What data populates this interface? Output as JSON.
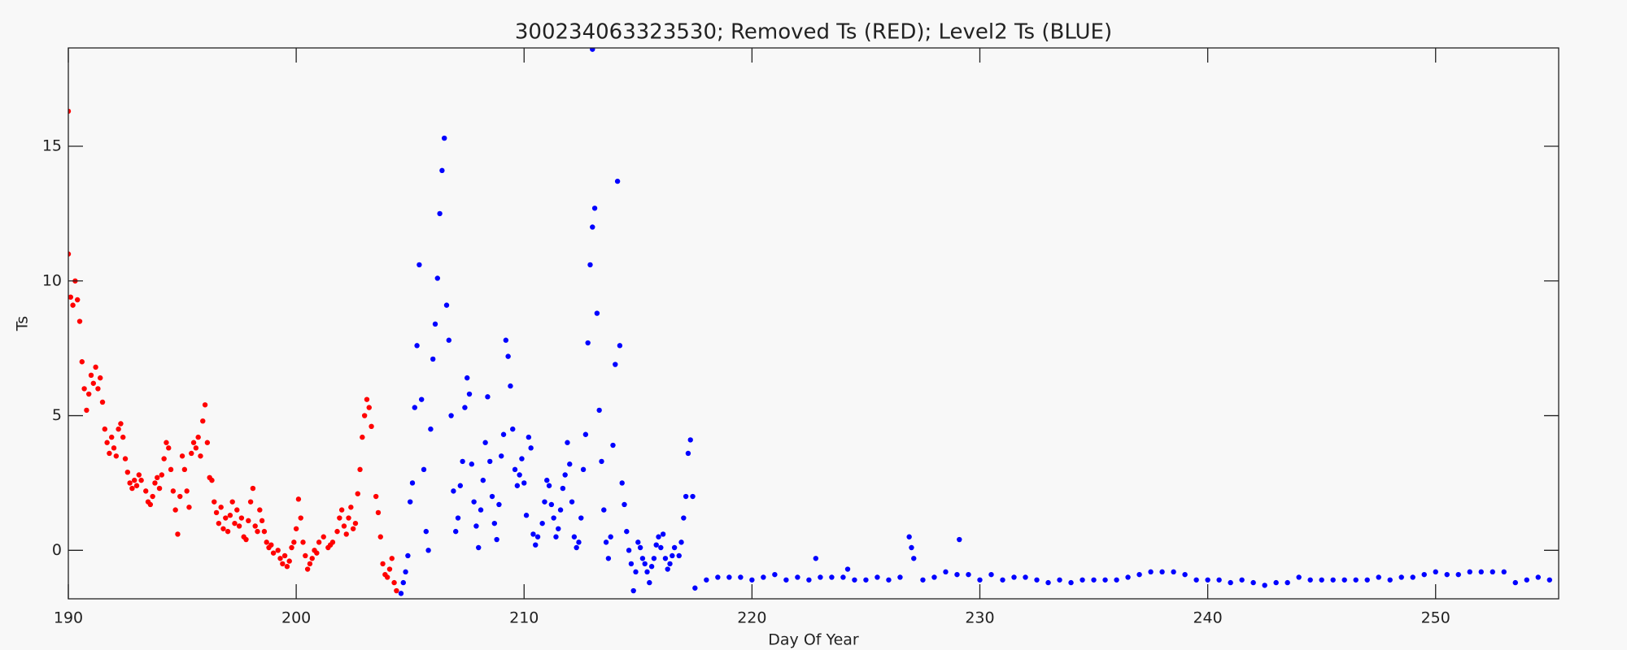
{
  "chart_data": {
    "type": "scatter",
    "title": "300234063323530; Removed Ts (RED); Level2 Ts (BLUE)",
    "x_label": "Day Of Year",
    "y_label": "Ts",
    "xlim": [
      190,
      255.4
    ],
    "ylim": [
      -1.8,
      18.65
    ],
    "xticks": [
      190,
      200,
      210,
      220,
      230,
      240,
      250
    ],
    "yticks": [
      0,
      5,
      10,
      15
    ],
    "series": [
      {
        "color": "#ff0000",
        "x": [
          190.0,
          190.0,
          190.1,
          190.2,
          190.3,
          190.4,
          190.5,
          190.6,
          190.7,
          190.8,
          190.9,
          191.0,
          191.1,
          191.2,
          191.3,
          191.4,
          191.5,
          191.6,
          191.7,
          191.8,
          191.9,
          192.0,
          192.1,
          192.2,
          192.3,
          192.4,
          192.5,
          192.6,
          192.7,
          192.8,
          192.9,
          193.0,
          193.1,
          193.2,
          193.4,
          193.5,
          193.6,
          193.7,
          193.8,
          193.9,
          194.0,
          194.1,
          194.2,
          194.3,
          194.4,
          194.5,
          194.6,
          194.7,
          194.8,
          194.9,
          195.0,
          195.1,
          195.2,
          195.3,
          195.4,
          195.5,
          195.6,
          195.7,
          195.8,
          195.9,
          196.0,
          196.1,
          196.2,
          196.3,
          196.4,
          196.5,
          196.6,
          196.7,
          196.8,
          196.9,
          197.0,
          197.1,
          197.2,
          197.3,
          197.4,
          197.5,
          197.6,
          197.7,
          197.8,
          197.9,
          198.0,
          198.1,
          198.2,
          198.3,
          198.4,
          198.5,
          198.6,
          198.7,
          198.8,
          198.9,
          199.0,
          199.2,
          199.3,
          199.4,
          199.5,
          199.6,
          199.7,
          199.8,
          199.9,
          200.0,
          200.1,
          200.2,
          200.3,
          200.4,
          200.5,
          200.6,
          200.7,
          200.8,
          200.9,
          201.0,
          201.2,
          201.4,
          201.5,
          201.6,
          201.8,
          201.9,
          202.0,
          202.1,
          202.2,
          202.3,
          202.4,
          202.5,
          202.6,
          202.7,
          202.8,
          202.9,
          203.0,
          203.1,
          203.2,
          203.3,
          203.5,
          203.6,
          203.7,
          203.8,
          203.9,
          204.0,
          204.1,
          204.2,
          204.3,
          204.4
        ],
        "values": [
          16.3,
          11.0,
          9.4,
          9.1,
          10.0,
          9.3,
          8.5,
          7.0,
          6.0,
          5.2,
          5.8,
          6.5,
          6.2,
          6.8,
          6.0,
          6.4,
          5.5,
          4.5,
          4.0,
          3.6,
          4.2,
          3.8,
          3.5,
          4.5,
          4.7,
          4.2,
          3.4,
          2.9,
          2.5,
          2.3,
          2.6,
          2.4,
          2.8,
          2.6,
          2.2,
          1.8,
          1.7,
          2.0,
          2.5,
          2.7,
          2.3,
          2.8,
          3.4,
          4.0,
          3.8,
          3.0,
          2.2,
          1.5,
          0.6,
          2.0,
          3.5,
          3.0,
          2.2,
          1.6,
          3.6,
          4.0,
          3.8,
          4.2,
          3.5,
          4.8,
          5.4,
          4.0,
          2.7,
          2.6,
          1.8,
          1.4,
          1.0,
          1.6,
          0.8,
          1.2,
          0.7,
          1.3,
          1.8,
          1.0,
          1.5,
          0.9,
          1.2,
          0.5,
          0.4,
          1.1,
          1.8,
          2.3,
          0.9,
          0.7,
          1.5,
          1.1,
          0.7,
          0.3,
          0.1,
          0.2,
          -0.1,
          0.0,
          -0.3,
          -0.5,
          -0.2,
          -0.6,
          -0.4,
          0.1,
          0.3,
          0.8,
          1.9,
          1.2,
          0.3,
          -0.2,
          -0.7,
          -0.5,
          -0.3,
          0.0,
          -0.1,
          0.3,
          0.5,
          0.1,
          0.2,
          0.3,
          0.7,
          1.2,
          1.5,
          0.9,
          0.6,
          1.2,
          1.6,
          0.8,
          1.0,
          2.1,
          3.0,
          4.2,
          5.0,
          5.6,
          5.3,
          4.6,
          2.0,
          1.4,
          0.5,
          -0.5,
          -0.9,
          -1.0,
          -0.7,
          -0.3,
          -1.2,
          -1.5
        ]
      },
      {
        "color": "#0000ff",
        "x": [
          204.6,
          204.7,
          204.8,
          204.9,
          205.0,
          205.1,
          205.2,
          205.3,
          205.4,
          205.5,
          205.6,
          205.7,
          205.8,
          205.9,
          206.0,
          206.1,
          206.2,
          206.3,
          206.4,
          206.5,
          206.6,
          206.7,
          206.8,
          206.9,
          207.0,
          207.1,
          207.2,
          207.3,
          207.4,
          207.5,
          207.6,
          207.7,
          207.8,
          207.9,
          208.0,
          208.1,
          208.2,
          208.3,
          208.4,
          208.5,
          208.6,
          208.7,
          208.8,
          208.9,
          209.0,
          209.1,
          209.2,
          209.3,
          209.4,
          209.5,
          209.6,
          209.7,
          209.8,
          209.9,
          210.0,
          210.1,
          210.2,
          210.3,
          210.4,
          210.5,
          210.6,
          210.8,
          210.9,
          211.0,
          211.1,
          211.2,
          211.3,
          211.4,
          211.5,
          211.6,
          211.7,
          211.8,
          211.9,
          212.0,
          212.1,
          212.2,
          212.3,
          212.4,
          212.5,
          212.6,
          212.7,
          212.8,
          212.9,
          213.0,
          213.1,
          213.2,
          213.3,
          213.4,
          213.5,
          213.6,
          213.7,
          213.8,
          213.9,
          214.0,
          214.1,
          214.2,
          214.3,
          214.4,
          214.5,
          214.6,
          214.7,
          214.8,
          214.9,
          215.0,
          215.1,
          215.2,
          215.3,
          215.4,
          215.5,
          215.6,
          215.7,
          215.8,
          215.9,
          216.0,
          216.1,
          216.2,
          216.3,
          216.4,
          216.5,
          216.6,
          216.8,
          216.9,
          217.0,
          217.1,
          217.2,
          217.3,
          217.4,
          217.5,
          213.0,
          218,
          218.5,
          219,
          219.5,
          220,
          220.5,
          221,
          221.5,
          222,
          222.5,
          222.8,
          223,
          223.5,
          224,
          224.2,
          224.5,
          225,
          225.5,
          226,
          226.5,
          226.9,
          227.0,
          227.1,
          227.5,
          228,
          228.5,
          229.0,
          229.1,
          229.5,
          230,
          230.5,
          231,
          231.5,
          232,
          232.5,
          233,
          233.5,
          234,
          234.5,
          235,
          235.5,
          236,
          236.5,
          237,
          237.5,
          238,
          238.5,
          239,
          239.5,
          240,
          240.5,
          241,
          241.5,
          242,
          242.5,
          243,
          243.5,
          244,
          244.5,
          245,
          245.5,
          246,
          246.5,
          247,
          247.5,
          248,
          248.5,
          249,
          249.5,
          250,
          250.5,
          251,
          251.5,
          252,
          252.5,
          253,
          253.5,
          254,
          254.5,
          255
        ],
        "values": [
          -1.6,
          -1.2,
          -0.8,
          -0.2,
          1.8,
          2.5,
          5.3,
          7.6,
          10.6,
          5.6,
          3.0,
          0.7,
          0.0,
          4.5,
          7.1,
          8.4,
          10.1,
          12.5,
          14.1,
          15.3,
          9.1,
          7.8,
          5.0,
          2.2,
          0.7,
          1.2,
          2.4,
          3.3,
          5.3,
          6.4,
          5.8,
          3.2,
          1.8,
          0.9,
          0.1,
          1.5,
          2.6,
          4.0,
          5.7,
          3.3,
          2.0,
          1.0,
          0.4,
          1.7,
          3.5,
          4.3,
          7.8,
          7.2,
          6.1,
          4.5,
          3.0,
          2.4,
          2.8,
          3.4,
          2.5,
          1.3,
          4.2,
          3.8,
          0.6,
          0.2,
          0.5,
          1.0,
          1.8,
          2.6,
          2.4,
          1.7,
          1.2,
          0.5,
          0.8,
          1.5,
          2.3,
          2.8,
          4.0,
          3.2,
          1.8,
          0.5,
          0.1,
          0.3,
          1.2,
          3.0,
          4.3,
          7.7,
          10.6,
          12.0,
          12.7,
          8.8,
          5.2,
          3.3,
          1.5,
          0.3,
          -0.3,
          0.5,
          3.9,
          6.9,
          13.7,
          7.6,
          2.5,
          1.7,
          0.7,
          0.0,
          -0.5,
          -1.5,
          -0.8,
          0.3,
          0.1,
          -0.3,
          -0.5,
          -0.8,
          -1.2,
          -0.6,
          -0.3,
          0.2,
          0.5,
          0.1,
          0.6,
          -0.3,
          -0.7,
          -0.5,
          -0.2,
          0.1,
          -0.2,
          0.3,
          1.2,
          2.0,
          3.6,
          4.1,
          2.0,
          -1.4,
          18.6,
          -1.1,
          -1.0,
          -1.0,
          -1.0,
          -1.1,
          -1.0,
          -0.9,
          -1.1,
          -1.0,
          -1.1,
          -0.3,
          -1.0,
          -1.0,
          -1.0,
          -0.7,
          -1.1,
          -1.1,
          -1.0,
          -1.1,
          -1.0,
          0.5,
          0.1,
          -0.3,
          -1.1,
          -1.0,
          -0.8,
          -0.9,
          0.4,
          -0.9,
          -1.1,
          -0.9,
          -1.1,
          -1.0,
          -1.0,
          -1.1,
          -1.2,
          -1.1,
          -1.2,
          -1.1,
          -1.1,
          -1.1,
          -1.1,
          -1.0,
          -0.9,
          -0.8,
          -0.8,
          -0.8,
          -0.9,
          -1.1,
          -1.1,
          -1.1,
          -1.2,
          -1.1,
          -1.2,
          -1.3,
          -1.2,
          -1.2,
          -1.0,
          -1.1,
          -1.1,
          -1.1,
          -1.1,
          -1.1,
          -1.1,
          -1.0,
          -1.1,
          -1.0,
          -1.0,
          -0.9,
          -0.8,
          -0.9,
          -0.9,
          -0.8,
          -0.8,
          -0.8,
          -0.8,
          -1.2,
          -1.1,
          -1.0,
          -1.1
        ]
      }
    ]
  }
}
